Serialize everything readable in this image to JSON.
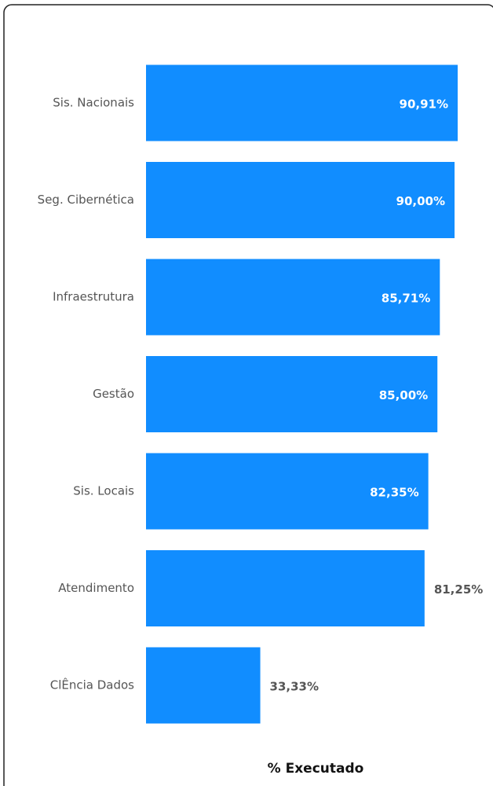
{
  "chart_data": {
    "type": "bar",
    "orientation": "horizontal",
    "categories": [
      "Sis. Nacionais",
      "Seg. Cibernética",
      "Infraestrutura",
      "Gestão",
      "Sis. Locais",
      "Atendimento",
      "ClÊncia Dados"
    ],
    "values": [
      90.91,
      90.0,
      85.71,
      85.0,
      82.35,
      81.25,
      33.33
    ],
    "value_labels": [
      "90,91%",
      "90,00%",
      "85,71%",
      "85,00%",
      "82,35%",
      "81,25%",
      "33,33%"
    ],
    "color": "#118dff",
    "xlim": [
      0,
      100
    ],
    "x_label": "% Executado"
  }
}
